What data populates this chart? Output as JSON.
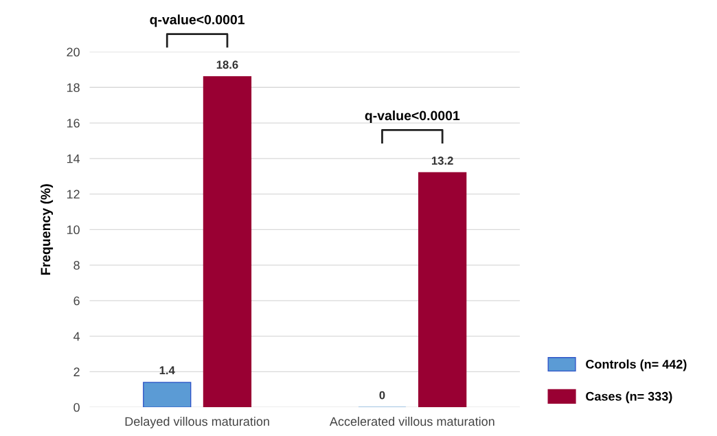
{
  "chart_data": {
    "type": "bar",
    "ylabel": "Frequency (%)",
    "categories": [
      "Delayed villous maturation",
      "Accelerated villous maturation"
    ],
    "series": [
      {
        "name": "Controls (n= 442)",
        "color": "#5b9bd5",
        "values": [
          1.4,
          0
        ]
      },
      {
        "name": "Cases (n= 333)",
        "color": "#990033",
        "values": [
          18.6,
          13.2
        ]
      }
    ],
    "ylim": [
      0,
      20
    ],
    "yticks": [
      0,
      2,
      4,
      6,
      8,
      10,
      12,
      14,
      16,
      18,
      20
    ],
    "grid": "y",
    "legend": "bottom right",
    "data_labels": true,
    "annotations": [
      "q-value<0.0001",
      "q-value<0.0001"
    ]
  }
}
